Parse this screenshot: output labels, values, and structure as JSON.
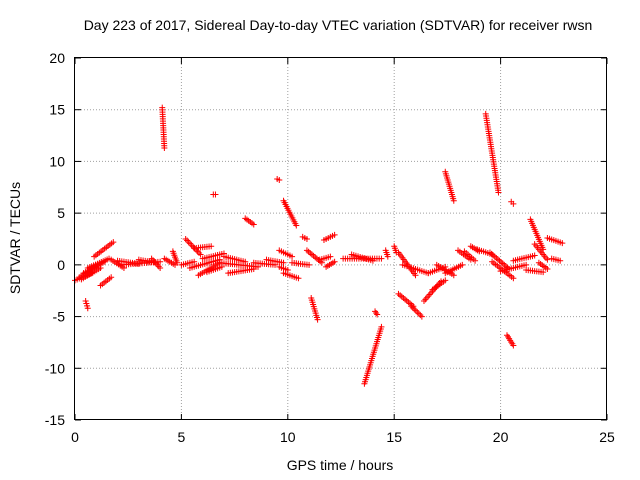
{
  "chart_data": {
    "type": "scatter",
    "title": "Day 223 of 2017, Sidereal Day-to-day VTEC variation (SDTVAR) for receiver rwsn",
    "xlabel": "GPS time / hours",
    "ylabel": "SDTVAR / TECUs",
    "xlim": [
      0,
      25
    ],
    "ylim": [
      -15,
      20
    ],
    "xticks": [
      "0",
      "5",
      "10",
      "15",
      "20",
      "25"
    ],
    "yticks": [
      "-15",
      "-10",
      "-5",
      "0",
      "5",
      "10",
      "15",
      "20"
    ],
    "grid": true,
    "marker": "+",
    "color": "#ff0000",
    "series": [
      {
        "name": "SDTVAR",
        "segments": [
          {
            "x": [
              0.0,
              0.8
            ],
            "y": [
              -1.5,
              -0.8
            ]
          },
          {
            "x": [
              0.2,
              1.0
            ],
            "y": [
              -1.2,
              -0.2
            ]
          },
          {
            "x": [
              0.4,
              1.4
            ],
            "y": [
              -0.8,
              0.3
            ]
          },
          {
            "x": [
              0.6,
              1.6
            ],
            "y": [
              -0.3,
              0.6
            ]
          },
          {
            "x": [
              0.3,
              1.2
            ],
            "y": [
              -1.4,
              -0.3
            ]
          },
          {
            "x": [
              0.5,
              0.6
            ],
            "y": [
              -3.5,
              -4.2
            ]
          },
          {
            "x": [
              0.9,
              1.8
            ],
            "y": [
              0.8,
              2.2
            ]
          },
          {
            "x": [
              1.2,
              1.7
            ],
            "y": [
              -2.0,
              -1.2
            ]
          },
          {
            "x": [
              1.7,
              2.3
            ],
            "y": [
              0.5,
              -0.3
            ]
          },
          {
            "x": [
              2.0,
              3.0
            ],
            "y": [
              0.4,
              0.1
            ]
          },
          {
            "x": [
              2.2,
              4.0
            ],
            "y": [
              0.0,
              0.3
            ]
          },
          {
            "x": [
              3.0,
              3.8
            ],
            "y": [
              0.5,
              0.2
            ]
          },
          {
            "x": [
              3.6,
              4.0
            ],
            "y": [
              0.6,
              -0.3
            ]
          },
          {
            "x": [
              4.1,
              4.2
            ],
            "y": [
              15.2,
              11.3
            ]
          },
          {
            "x": [
              4.2,
              4.7
            ],
            "y": [
              0.6,
              0.0
            ]
          },
          {
            "x": [
              4.6,
              4.8
            ],
            "y": [
              1.3,
              0.2
            ]
          },
          {
            "x": [
              5.0,
              5.6
            ],
            "y": [
              0.0,
              0.3
            ]
          },
          {
            "x": [
              5.2,
              5.9
            ],
            "y": [
              2.5,
              1.0
            ]
          },
          {
            "x": [
              5.4,
              6.8
            ],
            "y": [
              -0.3,
              0.5
            ]
          },
          {
            "x": [
              5.6,
              6.4
            ],
            "y": [
              1.6,
              1.8
            ]
          },
          {
            "x": [
              5.8,
              6.8
            ],
            "y": [
              -1.0,
              0.2
            ]
          },
          {
            "x": [
              6.0,
              7.0
            ],
            "y": [
              0.6,
              1.1
            ]
          },
          {
            "x": [
              6.2,
              6.9
            ],
            "y": [
              -0.7,
              -0.2
            ]
          },
          {
            "x": [
              6.5,
              6.6
            ],
            "y": [
              6.8,
              6.8
            ]
          },
          {
            "x": [
              6.8,
              8.6
            ],
            "y": [
              0.2,
              -0.2
            ]
          },
          {
            "x": [
              7.0,
              8.0
            ],
            "y": [
              0.8,
              0.3
            ]
          },
          {
            "x": [
              7.2,
              8.4
            ],
            "y": [
              -0.8,
              -0.4
            ]
          },
          {
            "x": [
              8.0,
              8.4
            ],
            "y": [
              4.5,
              3.9
            ]
          },
          {
            "x": [
              8.4,
              9.4
            ],
            "y": [
              0.2,
              0.0
            ]
          },
          {
            "x": [
              9.0,
              9.8
            ],
            "y": [
              0.5,
              0.2
            ]
          },
          {
            "x": [
              9.5,
              9.6
            ],
            "y": [
              8.3,
              8.2
            ]
          },
          {
            "x": [
              9.6,
              10.2
            ],
            "y": [
              1.4,
              0.8
            ]
          },
          {
            "x": [
              9.8,
              10.4
            ],
            "y": [
              6.2,
              3.8
            ]
          },
          {
            "x": [
              9.6,
              10.0
            ],
            "y": [
              -0.2,
              -0.5
            ]
          },
          {
            "x": [
              9.8,
              10.5
            ],
            "y": [
              -0.8,
              -1.3
            ]
          },
          {
            "x": [
              10.2,
              11.0
            ],
            "y": [
              0.2,
              0.0
            ]
          },
          {
            "x": [
              10.7,
              10.9
            ],
            "y": [
              2.7,
              2.5
            ]
          },
          {
            "x": [
              10.9,
              11.6
            ],
            "y": [
              1.4,
              0.2
            ]
          },
          {
            "x": [
              11.1,
              11.4
            ],
            "y": [
              -3.2,
              -5.3
            ]
          },
          {
            "x": [
              11.5,
              12.0
            ],
            "y": [
              0.5,
              0.8
            ]
          },
          {
            "x": [
              11.7,
              12.2
            ],
            "y": [
              2.4,
              2.9
            ]
          },
          {
            "x": [
              11.8,
              12.2
            ],
            "y": [
              -0.2,
              0.3
            ]
          },
          {
            "x": [
              12.6,
              14.4
            ],
            "y": [
              0.6,
              0.6
            ]
          },
          {
            "x": [
              13.0,
              14.0
            ],
            "y": [
              1.0,
              0.4
            ]
          },
          {
            "x": [
              13.6,
              14.4
            ],
            "y": [
              -11.5,
              -6.0
            ]
          },
          {
            "x": [
              14.1,
              14.2
            ],
            "y": [
              -4.5,
              -4.8
            ]
          },
          {
            "x": [
              14.6,
              14.7
            ],
            "y": [
              1.4,
              0.8
            ]
          },
          {
            "x": [
              15.0,
              15.1
            ],
            "y": [
              1.8,
              1.2
            ]
          },
          {
            "x": [
              15.2,
              16.0
            ],
            "y": [
              1.2,
              -1.0
            ]
          },
          {
            "x": [
              15.4,
              16.6
            ],
            "y": [
              0.0,
              -0.8
            ]
          },
          {
            "x": [
              15.2,
              15.9
            ],
            "y": [
              -2.8,
              -4.0
            ]
          },
          {
            "x": [
              15.8,
              16.3
            ],
            "y": [
              -4.0,
              -5.0
            ]
          },
          {
            "x": [
              16.4,
              17.2
            ],
            "y": [
              -3.5,
              -1.6
            ]
          },
          {
            "x": [
              16.6,
              17.4
            ],
            "y": [
              -0.8,
              -0.2
            ]
          },
          {
            "x": [
              16.8,
              17.4
            ],
            "y": [
              -2.4,
              -1.5
            ]
          },
          {
            "x": [
              17.0,
              17.8
            ],
            "y": [
              0.0,
              -1.0
            ]
          },
          {
            "x": [
              17.4,
              17.8
            ],
            "y": [
              9.0,
              6.2
            ]
          },
          {
            "x": [
              17.4,
              18.2
            ],
            "y": [
              -0.8,
              0.0
            ]
          },
          {
            "x": [
              18.0,
              18.6
            ],
            "y": [
              1.4,
              0.5
            ]
          },
          {
            "x": [
              18.3,
              18.8
            ],
            "y": [
              1.3,
              0.4
            ]
          },
          {
            "x": [
              18.6,
              19.0
            ],
            "y": [
              1.8,
              1.3
            ]
          },
          {
            "x": [
              18.9,
              19.6
            ],
            "y": [
              1.5,
              1.0
            ]
          },
          {
            "x": [
              19.3,
              19.9
            ],
            "y": [
              14.6,
              7.0
            ]
          },
          {
            "x": [
              19.5,
              20.4
            ],
            "y": [
              1.2,
              -0.4
            ]
          },
          {
            "x": [
              19.6,
              20.6
            ],
            "y": [
              0.3,
              -1.3
            ]
          },
          {
            "x": [
              20.0,
              21.2
            ],
            "y": [
              -0.6,
              0.0
            ]
          },
          {
            "x": [
              20.3,
              20.6
            ],
            "y": [
              -6.8,
              -7.8
            ]
          },
          {
            "x": [
              20.5,
              20.6
            ],
            "y": [
              6.1,
              5.9
            ]
          },
          {
            "x": [
              20.6,
              21.6
            ],
            "y": [
              0.4,
              0.9
            ]
          },
          {
            "x": [
              21.2,
              22.0
            ],
            "y": [
              -0.5,
              -0.7
            ]
          },
          {
            "x": [
              21.4,
              22.0
            ],
            "y": [
              4.4,
              1.5
            ]
          },
          {
            "x": [
              21.6,
              22.2
            ],
            "y": [
              2.0,
              0.5
            ]
          },
          {
            "x": [
              21.8,
              22.2
            ],
            "y": [
              0.2,
              -0.4
            ]
          },
          {
            "x": [
              22.2,
              22.9
            ],
            "y": [
              2.6,
              2.1
            ]
          },
          {
            "x": [
              22.4,
              22.8
            ],
            "y": [
              0.6,
              0.4
            ]
          }
        ]
      }
    ]
  }
}
